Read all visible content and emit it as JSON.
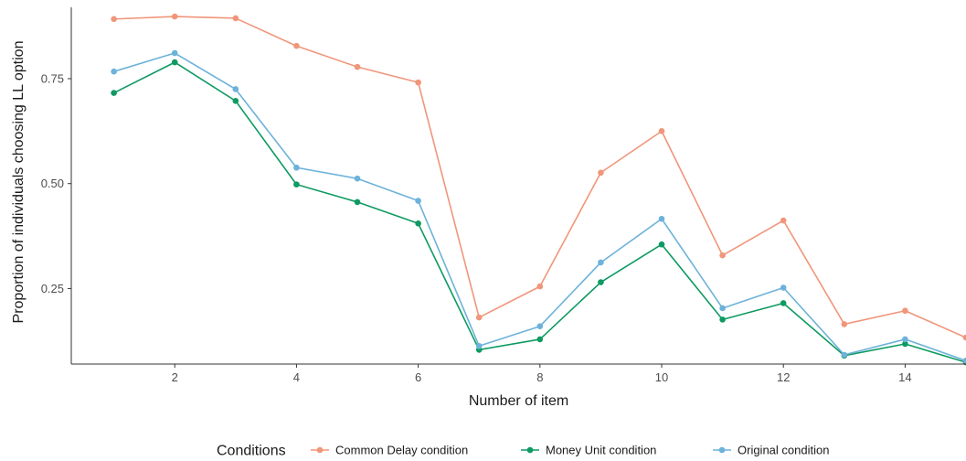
{
  "chart_data": {
    "type": "line",
    "title": "",
    "xlabel": "Number of item",
    "ylabel": "Proportion of individuals choosing LL option",
    "x": [
      1,
      2,
      3,
      4,
      5,
      6,
      7,
      8,
      9,
      10,
      11,
      12,
      13,
      14,
      15
    ],
    "xticks": [
      2,
      4,
      6,
      8,
      10,
      12,
      14
    ],
    "xtick_labels": [
      "2",
      "4",
      "6",
      "8",
      "10",
      "12",
      "14"
    ],
    "yticks": [
      0.25,
      0.5,
      0.75
    ],
    "ytick_labels": [
      "0.25",
      "0.50",
      "0.75"
    ],
    "xlim": [
      0.3,
      15
    ],
    "ylim": [
      0.07,
      0.92
    ],
    "grid": false,
    "legend": {
      "title": "Conditions",
      "position": "bottom"
    },
    "series": [
      {
        "name": "Common Delay condition",
        "color": "#F0967A",
        "values": [
          0.892,
          0.898,
          0.894,
          0.828,
          0.778,
          0.741,
          0.181,
          0.255,
          0.526,
          0.625,
          0.329,
          0.412,
          0.165,
          0.197,
          0.133
        ]
      },
      {
        "name": "Money Unit condition",
        "color": "#0E9A62",
        "values": [
          0.716,
          0.789,
          0.697,
          0.498,
          0.456,
          0.405,
          0.104,
          0.129,
          0.265,
          0.355,
          0.176,
          0.215,
          0.09,
          0.118,
          0.074
        ]
      },
      {
        "name": "Original condition",
        "color": "#6CB2DA",
        "values": [
          0.767,
          0.811,
          0.725,
          0.538,
          0.512,
          0.459,
          0.113,
          0.16,
          0.312,
          0.416,
          0.203,
          0.252,
          0.092,
          0.129,
          0.078
        ]
      }
    ]
  }
}
